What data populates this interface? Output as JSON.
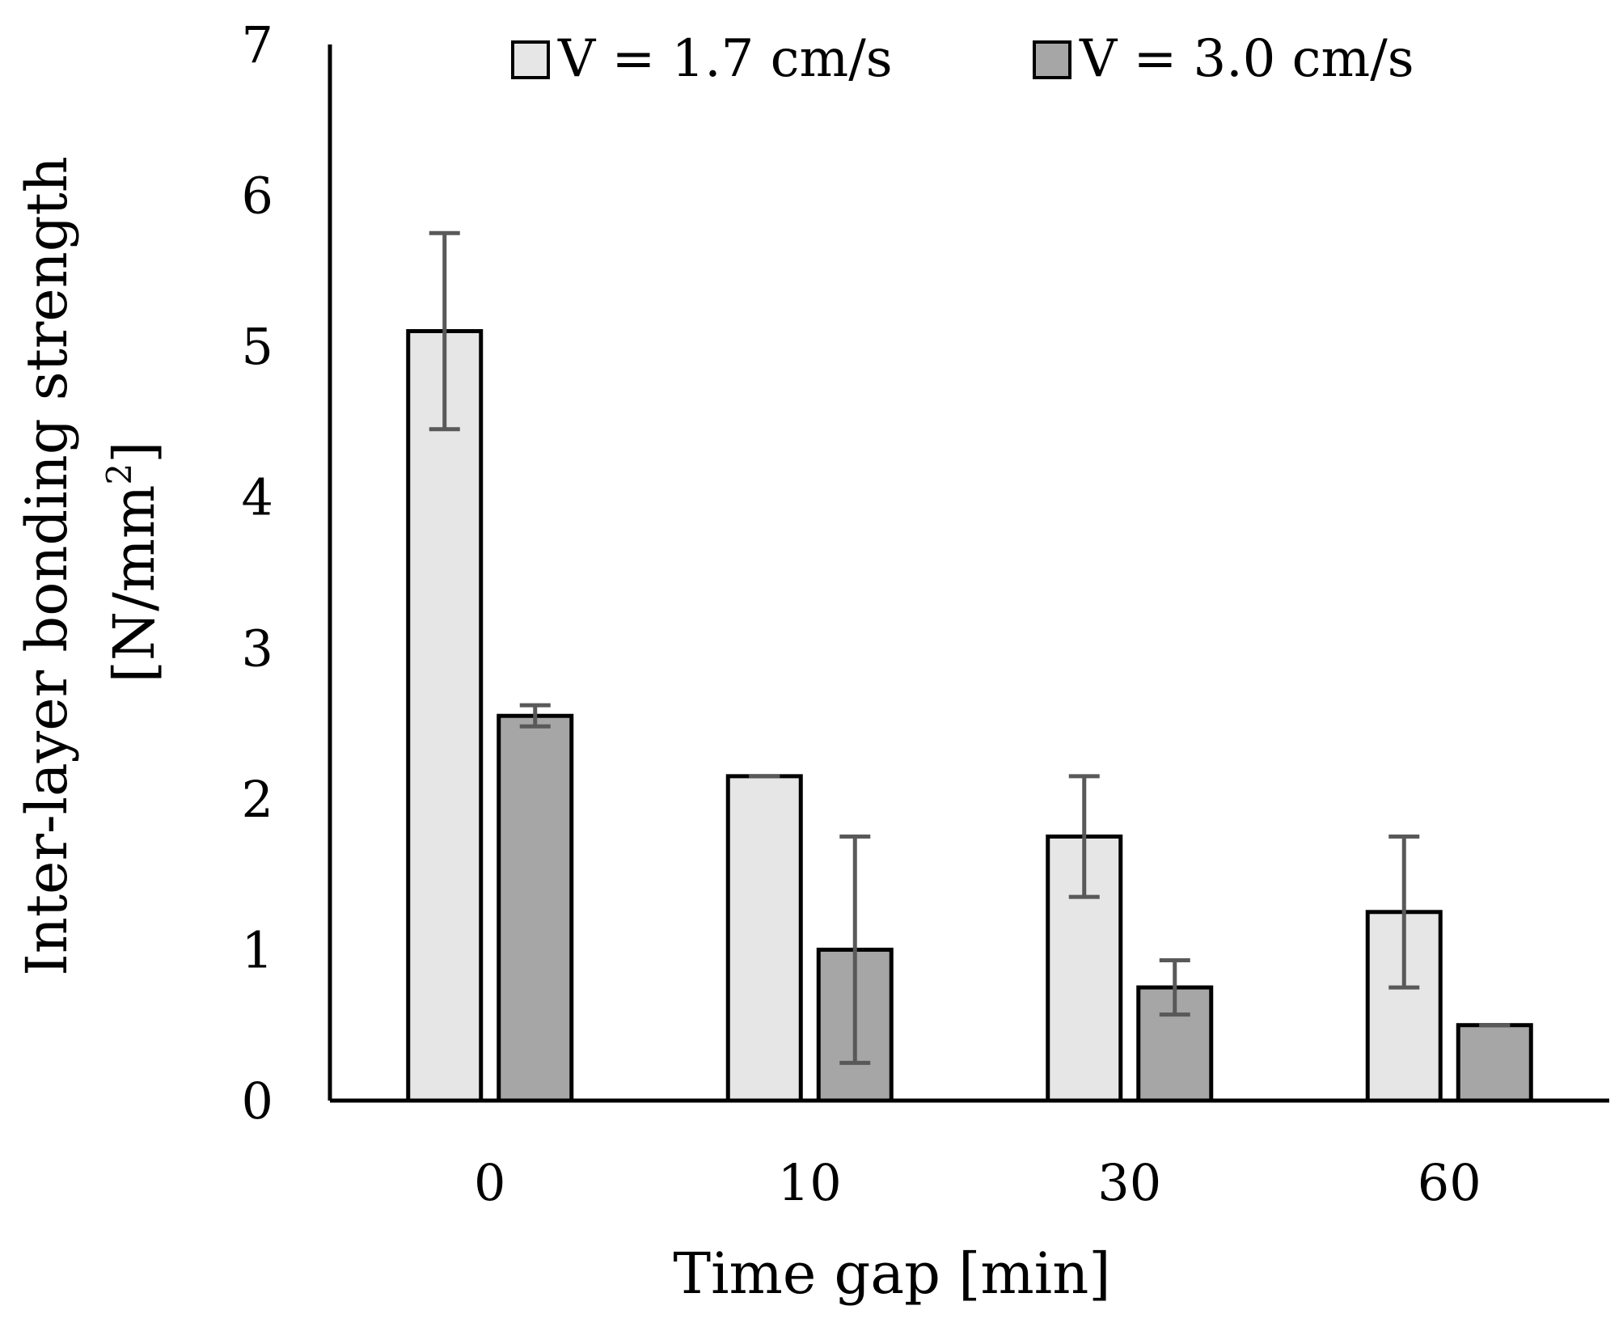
{
  "chart_data": {
    "type": "bar",
    "title": "",
    "xlabel": "Time gap [min]",
    "ylabel": {
      "line1": "Inter-layer bonding strength",
      "line2_prefix": "[N/mm",
      "line2_sup": "2",
      "line2_suffix": "]"
    },
    "categories": [
      "0",
      "10",
      "30",
      "60"
    ],
    "ylim": [
      0,
      7
    ],
    "yticks": [
      "0",
      "1",
      "2",
      "3",
      "4",
      "5",
      "6",
      "7"
    ],
    "grid": false,
    "legend_position": "top",
    "series": [
      {
        "name": "V = 1.7 cm/s",
        "color": "#e6e6e6",
        "values": [
          5.1,
          2.15,
          1.75,
          1.25
        ],
        "error_low": [
          4.45,
          2.15,
          1.35,
          0.75
        ],
        "error_high": [
          5.75,
          2.15,
          2.15,
          1.75
        ]
      },
      {
        "name": "V = 3.0 cm/s",
        "color": "#a6a6a6",
        "values": [
          2.55,
          1.0,
          0.75,
          0.5
        ],
        "error_low": [
          2.48,
          0.25,
          0.57,
          0.5
        ],
        "error_high": [
          2.62,
          1.75,
          0.93,
          0.5
        ]
      }
    ],
    "colors": {
      "axis": "#000000",
      "bar_outline": "#000000",
      "error_bar": "#595959"
    }
  }
}
